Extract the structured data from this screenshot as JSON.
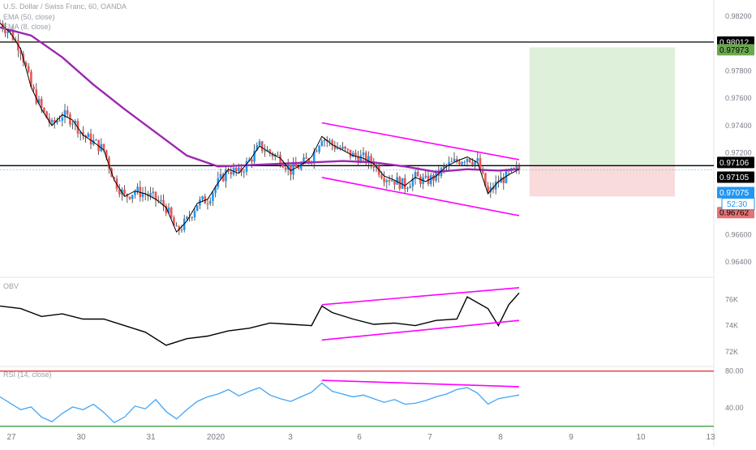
{
  "header": {
    "symbol_line": "U.S. Dollar / Swiss Franc, 60, OANDA",
    "ema50_label": "EMA (50, close)",
    "ema8_label": "EMA (8, close)"
  },
  "panels": {
    "obv_label": "OBV",
    "rsi_label": "RSI (14, close)"
  },
  "colors": {
    "up_candle": "#2196f3",
    "down_candle": "#ef5350",
    "ema50": "#9c27b0",
    "ema8": "#000000",
    "trendline": "#ff00ff",
    "rsi_line": "#42a5f5",
    "rsi_upper": "#e53935",
    "rsi_lower": "#43a047",
    "target_zone": "#d8ecd3",
    "stop_zone": "#f8d7d7"
  },
  "chart_data": [
    {
      "type": "candlestick",
      "title": "U.S. Dollar / Swiss Franc, 60, OANDA",
      "x_tick_labels": [
        "27",
        "30",
        "31",
        "2020",
        "3",
        "6",
        "7",
        "8",
        "9",
        "10",
        "13"
      ],
      "y_tick_labels": [
        "0.98200",
        "0.97800",
        "0.97600",
        "0.97400",
        "0.97200",
        "0.96600",
        "0.96400"
      ],
      "ylim": [
        0.963,
        0.9832
      ],
      "price_levels": [
        {
          "name": "resistance",
          "value": 0.98012,
          "label": "0.98012"
        },
        {
          "name": "target",
          "value": 0.97973,
          "label": "0.97973"
        },
        {
          "name": "entry-line",
          "value": 0.97106,
          "label": "0.97106"
        },
        {
          "name": "last-price",
          "value": 0.97105,
          "label": "0.97105"
        },
        {
          "name": "bid",
          "value": 0.97075,
          "label": "0.97075"
        },
        {
          "name": "stop",
          "value": 0.96762,
          "label": "0.96762"
        }
      ],
      "countdown_label": "52:30",
      "price_path": [
        [
          0,
          0.9815
        ],
        [
          1,
          0.9808
        ],
        [
          2,
          0.9796
        ],
        [
          3,
          0.9768
        ],
        [
          4,
          0.9752
        ],
        [
          5,
          0.974
        ],
        [
          6,
          0.9748
        ],
        [
          7,
          0.9744
        ],
        [
          8,
          0.9733
        ],
        [
          9,
          0.9728
        ],
        [
          10,
          0.9722
        ],
        [
          11,
          0.97
        ],
        [
          12,
          0.9688
        ],
        [
          13,
          0.9692
        ],
        [
          14,
          0.969
        ],
        [
          15,
          0.9686
        ],
        [
          16,
          0.968
        ],
        [
          17,
          0.9662
        ],
        [
          18,
          0.967
        ],
        [
          19,
          0.9683
        ],
        [
          20,
          0.9686
        ],
        [
          21,
          0.9698
        ],
        [
          22,
          0.9708
        ],
        [
          23,
          0.9705
        ],
        [
          24,
          0.9714
        ],
        [
          25,
          0.9725
        ],
        [
          26,
          0.972
        ],
        [
          27,
          0.9716
        ],
        [
          28,
          0.9707
        ],
        [
          29,
          0.9711
        ],
        [
          30,
          0.9717
        ],
        [
          31,
          0.9732
        ],
        [
          32,
          0.9726
        ],
        [
          33,
          0.9722
        ],
        [
          34,
          0.9718
        ],
        [
          35,
          0.9716
        ],
        [
          36,
          0.9712
        ],
        [
          37,
          0.9703
        ],
        [
          38,
          0.97
        ],
        [
          39,
          0.9696
        ],
        [
          40,
          0.9702
        ],
        [
          41,
          0.9699
        ],
        [
          42,
          0.9703
        ],
        [
          43,
          0.971
        ],
        [
          44,
          0.9714
        ],
        [
          45,
          0.9717
        ],
        [
          46,
          0.9713
        ],
        [
          47,
          0.969
        ],
        [
          48,
          0.9699
        ],
        [
          49,
          0.9704
        ],
        [
          50,
          0.9708
        ]
      ],
      "ema50_path": [
        [
          0,
          0.9812
        ],
        [
          3,
          0.9806
        ],
        [
          6,
          0.979
        ],
        [
          9,
          0.977
        ],
        [
          12,
          0.9752
        ],
        [
          15,
          0.9735
        ],
        [
          18,
          0.9718
        ],
        [
          21,
          0.971
        ],
        [
          24,
          0.9711
        ],
        [
          27,
          0.9712
        ],
        [
          30,
          0.9713
        ],
        [
          33,
          0.9714
        ],
        [
          36,
          0.9713
        ],
        [
          39,
          0.971
        ],
        [
          42,
          0.9706
        ],
        [
          45,
          0.9708
        ],
        [
          48,
          0.9707
        ],
        [
          50,
          0.9708
        ]
      ],
      "annotations": {
        "channel_upper": [
          [
            31,
            0.9742
          ],
          [
            50,
            0.9715
          ]
        ],
        "channel_lower": [
          [
            31,
            0.9702
          ],
          [
            50,
            0.9674
          ]
        ],
        "target_zone": {
          "x_start": 51,
          "x_end": 65,
          "top": 0.97973,
          "bottom": 0.97106
        },
        "stop_zone": {
          "x_start": 51,
          "x_end": 65,
          "top": 0.97106,
          "bottom": 0.9688
        }
      }
    },
    {
      "type": "line",
      "title": "OBV",
      "y_tick_labels": [
        "76K",
        "74K",
        "72K"
      ],
      "ylim": [
        71000,
        77200
      ],
      "values": [
        [
          0,
          75500
        ],
        [
          2,
          75300
        ],
        [
          4,
          74700
        ],
        [
          6,
          74900
        ],
        [
          8,
          74500
        ],
        [
          10,
          74500
        ],
        [
          12,
          74000
        ],
        [
          14,
          73500
        ],
        [
          16,
          72500
        ],
        [
          18,
          73000
        ],
        [
          20,
          73200
        ],
        [
          22,
          73600
        ],
        [
          24,
          73800
        ],
        [
          26,
          74200
        ],
        [
          28,
          74100
        ],
        [
          30,
          74000
        ],
        [
          31,
          75500
        ],
        [
          32,
          75000
        ],
        [
          34,
          74500
        ],
        [
          36,
          74100
        ],
        [
          38,
          74200
        ],
        [
          40,
          74000
        ],
        [
          42,
          74400
        ],
        [
          44,
          74500
        ],
        [
          45,
          76200
        ],
        [
          47,
          75300
        ],
        [
          48,
          74000
        ],
        [
          49,
          75600
        ],
        [
          50,
          76500
        ]
      ],
      "trendline_upper": [
        [
          31,
          75600
        ],
        [
          50,
          76900
        ]
      ],
      "trendline_lower": [
        [
          31,
          72900
        ],
        [
          50,
          74400
        ]
      ]
    },
    {
      "type": "line",
      "title": "RSI (14, close)",
      "y_tick_labels": [
        "80.00",
        "40.00"
      ],
      "ylim": [
        18,
        85
      ],
      "levels": [
        {
          "name": "overbought",
          "value": 80
        },
        {
          "name": "oversold",
          "value": 20
        }
      ],
      "values": [
        [
          0,
          52
        ],
        [
          1,
          45
        ],
        [
          2,
          38
        ],
        [
          3,
          41
        ],
        [
          4,
          30
        ],
        [
          5,
          25
        ],
        [
          6,
          34
        ],
        [
          7,
          41
        ],
        [
          8,
          38
        ],
        [
          9,
          44
        ],
        [
          10,
          35
        ],
        [
          11,
          24
        ],
        [
          12,
          30
        ],
        [
          13,
          42
        ],
        [
          14,
          39
        ],
        [
          15,
          49
        ],
        [
          16,
          36
        ],
        [
          17,
          28
        ],
        [
          18,
          38
        ],
        [
          19,
          47
        ],
        [
          20,
          52
        ],
        [
          21,
          55
        ],
        [
          22,
          60
        ],
        [
          23,
          53
        ],
        [
          24,
          58
        ],
        [
          25,
          62
        ],
        [
          26,
          54
        ],
        [
          27,
          50
        ],
        [
          28,
          47
        ],
        [
          29,
          52
        ],
        [
          30,
          57
        ],
        [
          31,
          67
        ],
        [
          32,
          58
        ],
        [
          33,
          55
        ],
        [
          34,
          52
        ],
        [
          35,
          54
        ],
        [
          36,
          50
        ],
        [
          37,
          46
        ],
        [
          38,
          49
        ],
        [
          39,
          44
        ],
        [
          40,
          45
        ],
        [
          41,
          48
        ],
        [
          42,
          52
        ],
        [
          43,
          55
        ],
        [
          44,
          60
        ],
        [
          45,
          62
        ],
        [
          46,
          56
        ],
        [
          47,
          44
        ],
        [
          48,
          50
        ],
        [
          49,
          52
        ],
        [
          50,
          54
        ]
      ],
      "trendline": [
        [
          31,
          70
        ],
        [
          50,
          63
        ]
      ]
    }
  ]
}
